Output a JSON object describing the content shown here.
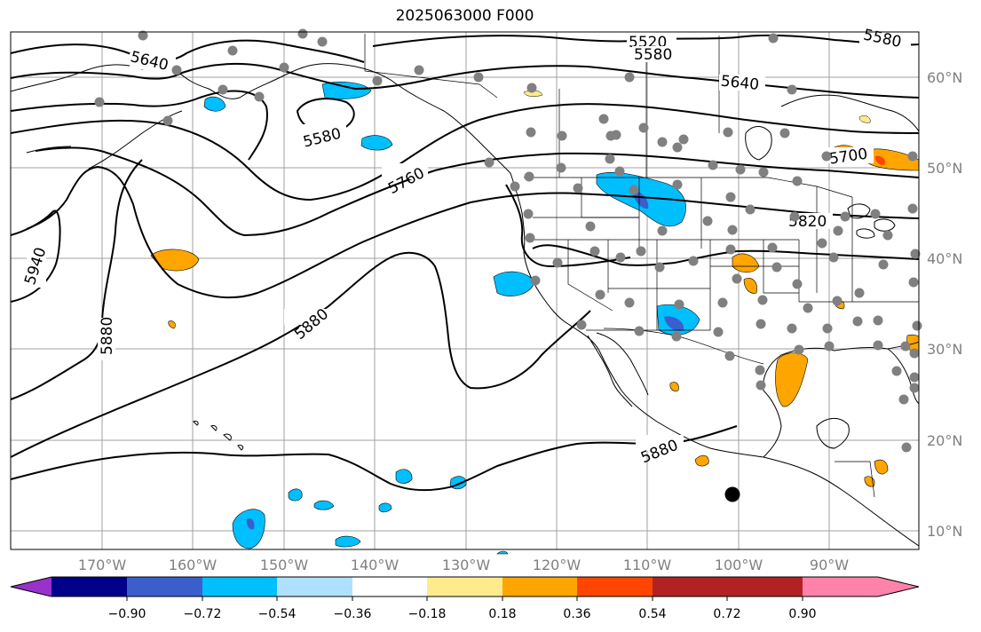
{
  "title": "2025063000 F000",
  "lon_ticks": [
    "170°W",
    "160°W",
    "150°W",
    "140°W",
    "130°W",
    "120°W",
    "110°W",
    "100°W",
    "90°W"
  ],
  "lat_ticks": [
    "60°N",
    "50°N",
    "40°N",
    "30°N",
    "20°N",
    "10°N"
  ],
  "contour_labels": [
    "5520",
    "5580",
    "5580",
    "5640",
    "5640",
    "5700",
    "5760",
    "5820",
    "5880",
    "5880",
    "5880",
    "5940",
    "5580"
  ],
  "colorbar": {
    "ticks": [
      "−0.90",
      "−0.72",
      "−0.54",
      "−0.36",
      "−0.18",
      "0.18",
      "0.36",
      "0.54",
      "0.72",
      "0.90"
    ],
    "colors": [
      "#9932cc",
      "#00008b",
      "#3a5fcd",
      "#00bfff",
      "#b0e0ff",
      "#ffffff",
      "#ffeb8c",
      "#ffa500",
      "#ff4500",
      "#b22222",
      "#ff82ab"
    ]
  },
  "colors": {
    "negative_fill": "#00bfff",
    "positive_fill": "#ffa500",
    "station_dot": "#808080",
    "grid": "#a0a0a0"
  }
}
